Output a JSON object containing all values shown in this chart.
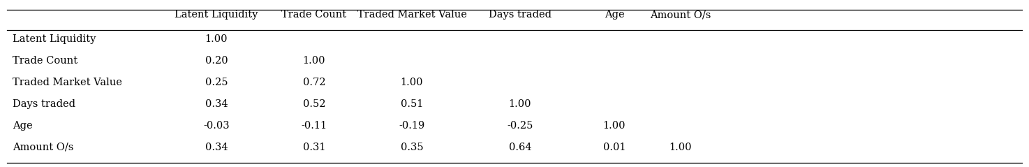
{
  "columns": [
    "Latent Liquidity",
    "Trade Count",
    "Traded Market Value",
    "Days traded",
    "Age",
    "Amount O/s"
  ],
  "rows": [
    {
      "label": "Latent Liquidity",
      "values": [
        "1.00",
        "",
        "",
        "",
        "",
        ""
      ]
    },
    {
      "label": "Trade Count",
      "values": [
        "0.20",
        "1.00",
        "",
        "",
        "",
        ""
      ]
    },
    {
      "label": "Traded Market Value",
      "values": [
        "0.25",
        "0.72",
        "1.00",
        "",
        "",
        ""
      ]
    },
    {
      "label": "Days traded",
      "values": [
        "0.34",
        "0.52",
        "0.51",
        "1.00",
        "",
        ""
      ]
    },
    {
      "label": "Age",
      "values": [
        "-0.03",
        "-0.11",
        "-0.19",
        "-0.25",
        "1.00",
        ""
      ]
    },
    {
      "label": "Amount O/s",
      "values": [
        "0.34",
        "0.31",
        "0.35",
        "0.64",
        "0.01",
        "1.00"
      ]
    }
  ],
  "bg_color": "#ffffff",
  "text_color": "#000000",
  "font_size": 10.5,
  "figsize": [
    14.74,
    2.39
  ],
  "dpi": 100
}
